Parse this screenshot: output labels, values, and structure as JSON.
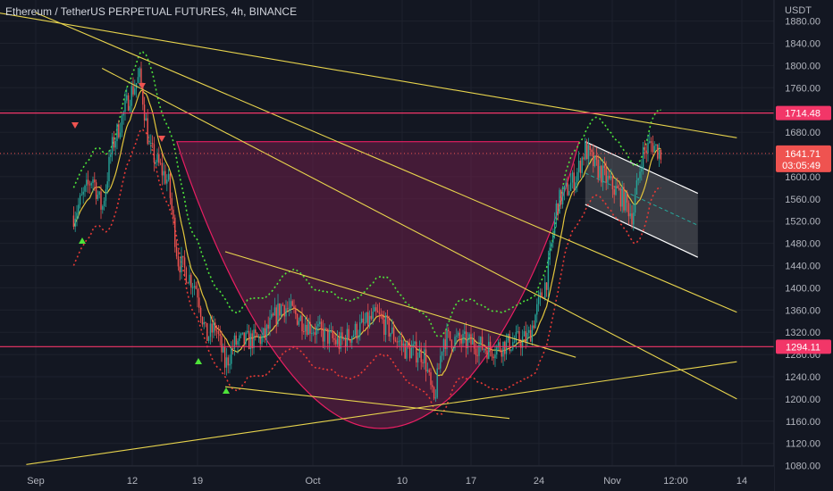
{
  "header": {
    "title": "Ethereum / TetherUS PERPETUAL FUTURES, 4h, BINANCE",
    "currency": "USDT"
  },
  "colors": {
    "background": "#131722",
    "grid": "#1e222d",
    "candle_up": "#26a69a",
    "candle_down": "#ef5350",
    "trendline": "#e8d44d",
    "level_line": "#f23668",
    "cup_fill": "#6d1f48",
    "upper_band": "#4ee33a",
    "lower_band": "#e53935",
    "ma": "#e3c53c",
    "price_tag": "#ef5350"
  },
  "chart_data": {
    "type": "candlestick",
    "symbol": "Ethereum / TetherUS PERPETUAL FUTURES",
    "interval": "4h",
    "exchange": "BINANCE",
    "ylim": [
      1060,
      1900
    ],
    "y_ticks": [
      1080,
      1120,
      1160,
      1200,
      1240,
      1280,
      1320,
      1360,
      1400,
      1440,
      1480,
      1520,
      1560,
      1600,
      1640,
      1680,
      1720,
      1760,
      1800,
      1840,
      1880
    ],
    "x_ticks": [
      "Sep",
      "12",
      "19",
      "Oct",
      "10",
      "17",
      "24",
      "Nov",
      "12:00",
      "14"
    ],
    "horizontal_levels": [
      {
        "price": 1714.48,
        "label": "1714.48"
      },
      {
        "price": 1294.11,
        "label": "1294.11"
      }
    ],
    "last_price": {
      "price": 1641.71,
      "label": "1641.71",
      "countdown": "03:05:49"
    },
    "price_path": [
      {
        "date": "2022-09-05",
        "price": 1530
      },
      {
        "date": "2022-09-07",
        "price": 1600
      },
      {
        "date": "2022-09-08",
        "price": 1540
      },
      {
        "date": "2022-09-09",
        "price": 1650
      },
      {
        "date": "2022-09-11",
        "price": 1750
      },
      {
        "date": "2022-09-12",
        "price": 1780
      },
      {
        "date": "2022-09-13",
        "price": 1650
      },
      {
        "date": "2022-09-14",
        "price": 1620
      },
      {
        "date": "2022-09-15",
        "price": 1590
      },
      {
        "date": "2022-09-16",
        "price": 1450
      },
      {
        "date": "2022-09-18",
        "price": 1400
      },
      {
        "date": "2022-09-19",
        "price": 1310
      },
      {
        "date": "2022-09-20",
        "price": 1330
      },
      {
        "date": "2022-09-21",
        "price": 1260
      },
      {
        "date": "2022-09-22",
        "price": 1300
      },
      {
        "date": "2022-09-25",
        "price": 1310
      },
      {
        "date": "2022-09-27",
        "price": 1370
      },
      {
        "date": "2022-09-30",
        "price": 1330
      },
      {
        "date": "2022-10-03",
        "price": 1300
      },
      {
        "date": "2022-10-07",
        "price": 1350
      },
      {
        "date": "2022-10-10",
        "price": 1290
      },
      {
        "date": "2022-10-12",
        "price": 1280
      },
      {
        "date": "2022-10-13",
        "price": 1190
      },
      {
        "date": "2022-10-14",
        "price": 1310
      },
      {
        "date": "2022-10-17",
        "price": 1300
      },
      {
        "date": "2022-10-19",
        "price": 1290
      },
      {
        "date": "2022-10-21",
        "price": 1300
      },
      {
        "date": "2022-10-23",
        "price": 1310
      },
      {
        "date": "2022-10-25",
        "price": 1420
      },
      {
        "date": "2022-10-26",
        "price": 1550
      },
      {
        "date": "2022-10-28",
        "price": 1600
      },
      {
        "date": "2022-10-29",
        "price": 1650
      },
      {
        "date": "2022-10-30",
        "price": 1620
      },
      {
        "date": "2022-11-01",
        "price": 1580
      },
      {
        "date": "2022-11-02",
        "price": 1560
      },
      {
        "date": "2022-11-03",
        "price": 1530
      },
      {
        "date": "2022-11-04",
        "price": 1640
      },
      {
        "date": "2022-11-05",
        "price": 1660
      },
      {
        "date": "2022-11-06",
        "price": 1642
      }
    ],
    "trendlines": [
      {
        "from": {
          "date": "2022-08-28",
          "price": 1895
        },
        "to": {
          "date": "2022-11-14",
          "price": 1670
        }
      },
      {
        "from": {
          "date": "2022-09-01",
          "price": 1895
        },
        "to": {
          "date": "2022-11-14",
          "price": 1356
        }
      },
      {
        "from": {
          "date": "2022-09-08",
          "price": 1795
        },
        "to": {
          "date": "2022-11-14",
          "price": 1200
        }
      },
      {
        "from": {
          "date": "2022-09-21",
          "price": 1465
        },
        "to": {
          "date": "2022-10-28",
          "price": 1275
        }
      },
      {
        "from": {
          "date": "2022-09-21",
          "price": 1222
        },
        "to": {
          "date": "2022-10-21",
          "price": 1165
        }
      },
      {
        "from": {
          "date": "2022-08-31",
          "price": 1082
        },
        "to": {
          "date": "2022-11-14",
          "price": 1267
        }
      }
    ],
    "cup_pattern": {
      "rim_price": 1663,
      "left_date": "2022-09-14",
      "right_date": "2022-10-29",
      "bottom_price": 1160
    },
    "channel": {
      "upper": [
        {
          "date": "2022-10-29",
          "price": 1663
        },
        {
          "date": "2022-11-08",
          "price": 1570
        }
      ],
      "lower": [
        {
          "date": "2022-10-29",
          "price": 1550
        },
        {
          "date": "2022-11-08",
          "price": 1455
        }
      ]
    }
  }
}
